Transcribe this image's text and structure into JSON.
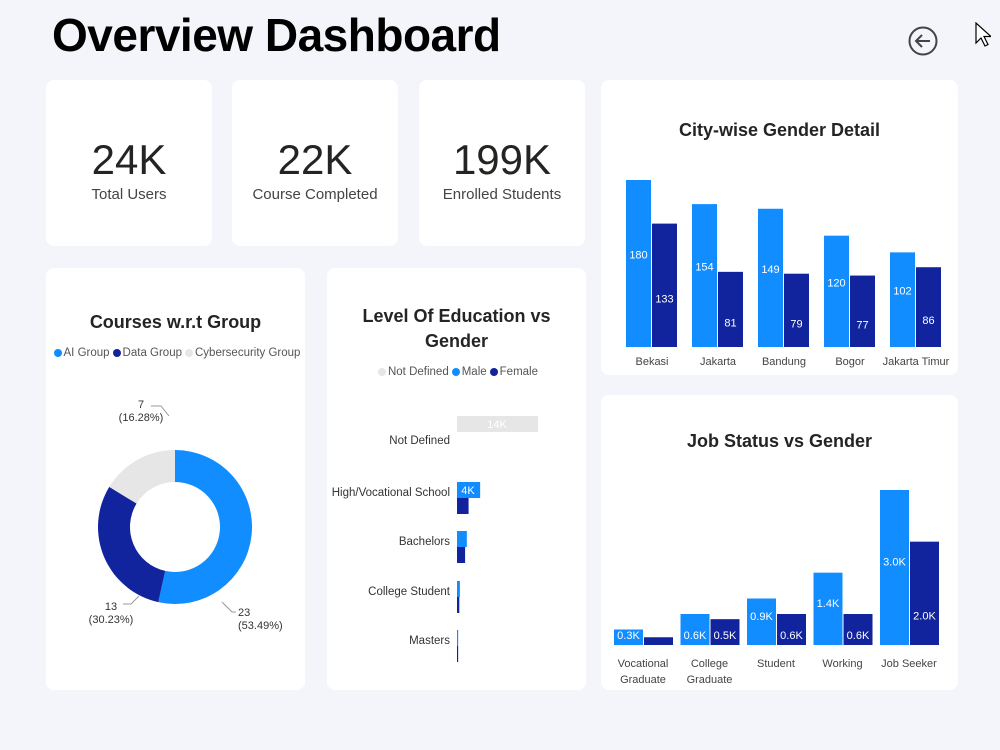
{
  "header": {
    "title": "Overview Dashboard",
    "back_icon": "arrow-left-circle-icon"
  },
  "kpis": [
    {
      "value": "24K",
      "label": "Total Users"
    },
    {
      "value": "22K",
      "label": "Course Completed"
    },
    {
      "value": "199K",
      "label": "Enrolled Students"
    }
  ],
  "colors": {
    "male": "#118dff",
    "female": "#12239e",
    "not_defined": "#e6e6e6",
    "ai": "#118dff",
    "data": "#12239e",
    "cyber": "#e6e6e6"
  },
  "chart_data": [
    {
      "type": "bar",
      "title": "City-wise Gender Detail",
      "categories": [
        "Bekasi",
        "Jakarta",
        "Bandung",
        "Bogor",
        "Jakarta Timur"
      ],
      "series": [
        {
          "values": [
            180,
            154,
            149,
            120,
            102
          ]
        },
        {
          "values": [
            133,
            81,
            79,
            77,
            86
          ]
        }
      ]
    },
    {
      "type": "pie",
      "title": "Courses w.r.t Group",
      "legend": [
        "AI Group",
        "Data Group",
        "Cybersecurity Group"
      ],
      "values": [
        23,
        13,
        7
      ],
      "percent_labels": [
        "(53.49%)",
        "(30.23%)",
        "(16.28%)"
      ],
      "donut": true
    },
    {
      "type": "bar",
      "orientation": "horizontal",
      "title": "Level Of Education vs Gender",
      "legend": [
        "Not Defined",
        "Male",
        "Female"
      ],
      "categories": [
        "Not Defined",
        "High/Vocational School",
        "Bachelors",
        "College Student",
        "Masters"
      ],
      "series": [
        {
          "name": "Not Defined",
          "values": [
            14,
            0,
            0,
            0,
            0
          ]
        },
        {
          "name": "Male",
          "values": [
            0,
            4,
            1.7,
            0.5,
            0.2
          ]
        },
        {
          "name": "Female",
          "values": [
            0,
            2,
            1.4,
            0.4,
            0.2
          ]
        }
      ],
      "data_labels": [
        "14K",
        "4K"
      ],
      "unit": "K"
    },
    {
      "type": "bar",
      "title": "Job Status vs Gender",
      "categories": [
        "Vocational Graduate",
        "College Graduate",
        "Student",
        "Working",
        "Job Seeker"
      ],
      "category_lines": [
        [
          "Vocational",
          "Graduate"
        ],
        [
          "College",
          "Graduate"
        ],
        [
          "Student"
        ],
        [
          "Working"
        ],
        [
          "Job Seeker"
        ]
      ],
      "series": [
        {
          "values": [
            0.3,
            0.6,
            0.9,
            1.4,
            3.0
          ],
          "labels": [
            "0.3K",
            "0.6K",
            "0.9K",
            "1.4K",
            "3.0K"
          ]
        },
        {
          "values": [
            0.15,
            0.5,
            0.6,
            0.6,
            2.0
          ],
          "labels": [
            "",
            "0.5K",
            "0.6K",
            "0.6K",
            "2.0K"
          ]
        }
      ]
    }
  ]
}
